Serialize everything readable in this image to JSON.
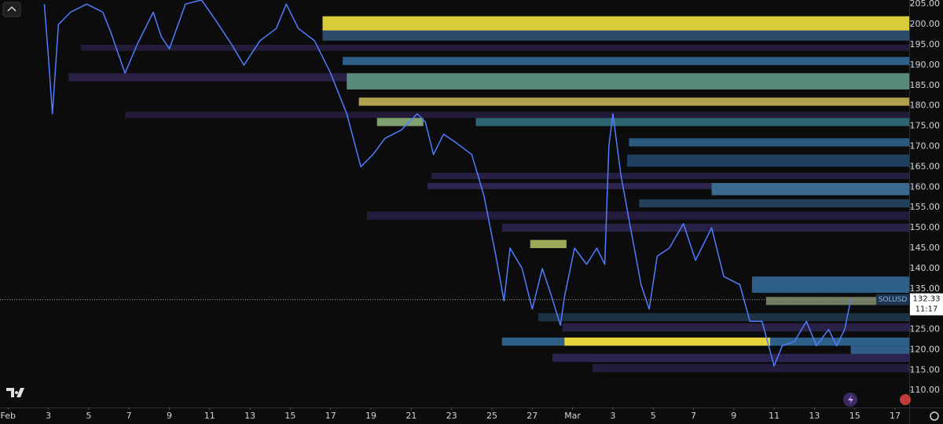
{
  "chart_data": {
    "type": "line",
    "series": [
      {
        "name": "SOLUSD",
        "color": "#4f7dff"
      }
    ],
    "x": [
      1.8,
      2.0,
      2.2,
      2.5,
      3.1,
      3.9,
      4.7,
      5.1,
      5.8,
      6.4,
      7.2,
      7.6,
      8.0,
      8.8,
      9.6,
      10.3,
      11.1,
      11.7,
      12.5,
      13.3,
      13.8,
      14.4,
      15.2,
      16.0,
      16.8,
      17.5,
      18.1,
      18.7,
      19.5,
      20.3,
      20.7,
      21.1,
      21.6,
      22.2,
      23.0,
      23.6,
      24.2,
      24.6,
      24.9,
      25.5,
      26.0,
      26.5,
      26.9,
      27.4,
      27.6,
      28.1,
      28.7,
      29.2,
      29.6,
      29.8,
      30.0,
      30.4,
      30.8,
      31.4,
      31.8,
      32.2,
      32.8,
      33.5,
      34.1,
      34.9,
      35.5,
      36.3,
      36.8,
      37.4,
      38.0,
      38.4,
      39.0,
      39.6,
      40.1,
      40.7,
      41.1,
      41.5,
      41.8
    ],
    "values": [
      205,
      192,
      178,
      200,
      203,
      205,
      203,
      198,
      188,
      195,
      203,
      197,
      194,
      205,
      206,
      201,
      195,
      190,
      196,
      199,
      205,
      199,
      196,
      188,
      178,
      165,
      168,
      172,
      174,
      178,
      176,
      168,
      173,
      171,
      168,
      158,
      143,
      132,
      145,
      140,
      130,
      140,
      134,
      126,
      133,
      145,
      141,
      145,
      141,
      170,
      178,
      163,
      152,
      136,
      130,
      143,
      145,
      151,
      142,
      150,
      138,
      136,
      127,
      127,
      116,
      121,
      122,
      127,
      121,
      125,
      121,
      125,
      132.33
    ],
    "xlim": [
      -0.4,
      44.7
    ],
    "ylim": [
      105.8,
      206
    ],
    "xticks": [
      {
        "value": 0,
        "label": "Feb"
      },
      {
        "value": 2,
        "label": "3"
      },
      {
        "value": 4,
        "label": "5"
      },
      {
        "value": 6,
        "label": "7"
      },
      {
        "value": 8,
        "label": "9"
      },
      {
        "value": 10,
        "label": "11"
      },
      {
        "value": 12,
        "label": "13"
      },
      {
        "value": 14,
        "label": "15"
      },
      {
        "value": 16,
        "label": "17"
      },
      {
        "value": 18,
        "label": "19"
      },
      {
        "value": 20,
        "label": "21"
      },
      {
        "value": 22,
        "label": "23"
      },
      {
        "value": 24,
        "label": "25"
      },
      {
        "value": 26,
        "label": "27"
      },
      {
        "value": 28,
        "label": "Mar"
      },
      {
        "value": 30,
        "label": "3"
      },
      {
        "value": 32,
        "label": "5"
      },
      {
        "value": 34,
        "label": "7"
      },
      {
        "value": 36,
        "label": "9"
      },
      {
        "value": 38,
        "label": "11"
      },
      {
        "value": 40,
        "label": "13"
      },
      {
        "value": 42,
        "label": "15"
      },
      {
        "value": 44,
        "label": "17"
      }
    ],
    "yticks": [
      {
        "value": 110,
        "label": "110.00"
      },
      {
        "value": 115,
        "label": "115.00"
      },
      {
        "value": 120,
        "label": "120.00"
      },
      {
        "value": 125,
        "label": "125.00"
      },
      {
        "value": 130,
        "label": "130.00"
      },
      {
        "value": 135,
        "label": "135.00"
      },
      {
        "value": 140,
        "label": "140.00"
      },
      {
        "value": 145,
        "label": "145.00"
      },
      {
        "value": 150,
        "label": "150.00"
      },
      {
        "value": 155,
        "label": "155.00"
      },
      {
        "value": 160,
        "label": "160.00"
      },
      {
        "value": 165,
        "label": "165.00"
      },
      {
        "value": 170,
        "label": "170.00"
      },
      {
        "value": 175,
        "label": "175.00"
      },
      {
        "value": 180,
        "label": "180.00"
      },
      {
        "value": 185,
        "label": "185.00"
      },
      {
        "value": 190,
        "label": "190.00"
      },
      {
        "value": 195,
        "label": "195.00"
      },
      {
        "value": 200,
        "label": "200.00"
      },
      {
        "value": 205,
        "label": "205.00"
      }
    ],
    "heatmap": [
      {
        "y0": 193.5,
        "y1": 195,
        "x0": 3.6,
        "color": "#241c3a"
      },
      {
        "y0": 186,
        "y1": 188,
        "x0": 3.0,
        "color": "#2a1f44"
      },
      {
        "y0": 177,
        "y1": 178.5,
        "x0": 5.8,
        "color": "#221a38"
      },
      {
        "y0": 162,
        "y1": 163.5,
        "x0": 21.0,
        "color": "#281f45"
      },
      {
        "y0": 159.5,
        "y1": 161,
        "x0": 20.8,
        "color": "#2d2450"
      },
      {
        "y0": 152,
        "y1": 154,
        "x0": 17.8,
        "color": "#231c3c"
      },
      {
        "y0": 149,
        "y1": 151,
        "x0": 24.5,
        "color": "#2a2146"
      },
      {
        "y0": 127,
        "y1": 129,
        "x0": 26.3,
        "color": "#1d3145"
      },
      {
        "y0": 124.5,
        "y1": 126.5,
        "x0": 27.5,
        "color": "#2a2146"
      },
      {
        "y0": 117,
        "y1": 119,
        "x0": 27.0,
        "color": "#2c2450"
      },
      {
        "y0": 114.5,
        "y1": 116.5,
        "x0": 29.0,
        "color": "#231c3c"
      },
      {
        "y0": 196,
        "y1": 198.5,
        "x0": 15.6,
        "color": "#2c4a6a"
      },
      {
        "y0": 198.5,
        "y1": 202,
        "x0": 15.6,
        "color": "#d8cc3a"
      },
      {
        "y0": 190,
        "y1": 192,
        "x0": 16.6,
        "color": "#2e5f88"
      },
      {
        "y0": 184,
        "y1": 188,
        "x0": 16.8,
        "color": "#5a8a7a"
      },
      {
        "y0": 180,
        "y1": 182,
        "x0": 17.4,
        "color": "#b0a050"
      },
      {
        "y0": 175,
        "y1": 177,
        "x0": 23.2,
        "color": "#2f6472"
      },
      {
        "y0": 175,
        "y1": 177,
        "x0": 18.3,
        "x1": 20.6,
        "color": "#7fa070"
      },
      {
        "y0": 170,
        "y1": 172,
        "x0": 30.8,
        "color": "#2a5a80"
      },
      {
        "y0": 165,
        "y1": 168,
        "x0": 30.7,
        "color": "#1e3f60"
      },
      {
        "y0": 158,
        "y1": 161,
        "x0": 34.9,
        "color": "#3a6a90"
      },
      {
        "y0": 155,
        "y1": 157,
        "x0": 31.3,
        "color": "#22405a"
      },
      {
        "y0": 145,
        "y1": 147,
        "x0": 25.9,
        "x1": 27.7,
        "color": "#9aaa58"
      },
      {
        "y0": 134,
        "y1": 138,
        "x0": 36.9,
        "color": "#2e5f88"
      },
      {
        "y0": 131,
        "y1": 133,
        "x0": 37.6,
        "color": "#707a60"
      },
      {
        "y0": 121,
        "y1": 123,
        "x0": 24.5,
        "color": "#2e5f88"
      },
      {
        "y0": 121,
        "y1": 123,
        "x0": 27.6,
        "x1": 37.8,
        "color": "#e6d33a"
      },
      {
        "y0": 119,
        "y1": 121,
        "x0": 41.8,
        "color": "#2e5f88"
      }
    ],
    "current_price": 132.33,
    "current_price_label": "132.33",
    "countdown": "11:17"
  }
}
